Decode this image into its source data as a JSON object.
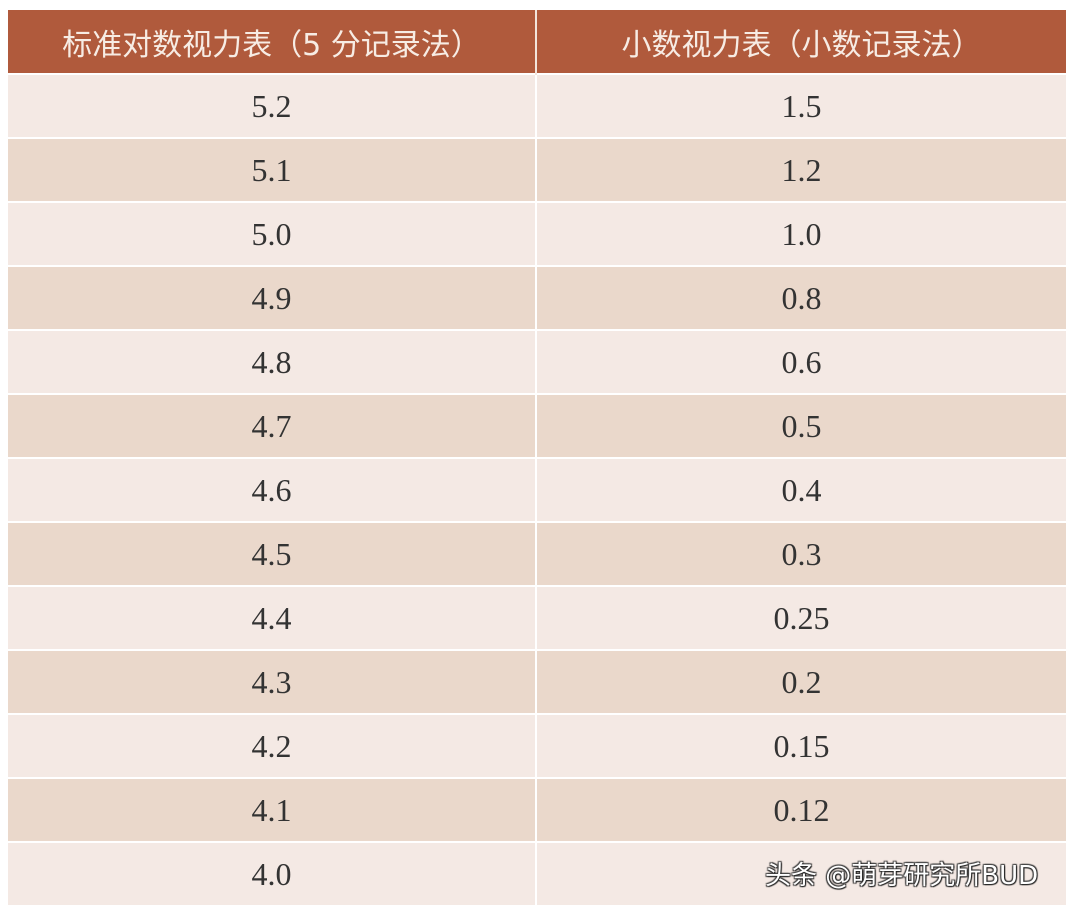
{
  "table": {
    "headers": [
      "标准对数视力表（5 分记录法）",
      "小数视力表（小数记录法）"
    ],
    "rows": [
      [
        "5.2",
        "1.5"
      ],
      [
        "5.1",
        "1.2"
      ],
      [
        "5.0",
        "1.0"
      ],
      [
        "4.9",
        "0.8"
      ],
      [
        "4.8",
        "0.6"
      ],
      [
        "4.7",
        "0.5"
      ],
      [
        "4.6",
        "0.4"
      ],
      [
        "4.5",
        "0.3"
      ],
      [
        "4.4",
        "0.25"
      ],
      [
        "4.3",
        "0.2"
      ],
      [
        "4.2",
        "0.15"
      ],
      [
        "4.1",
        "0.12"
      ],
      [
        "4.0",
        ""
      ]
    ]
  },
  "colors": {
    "header_bg": "#b05a3c",
    "row_light": "#f4e9e4",
    "row_dark": "#ead8cb"
  },
  "watermark": "头条 @萌芽研究所BUD"
}
